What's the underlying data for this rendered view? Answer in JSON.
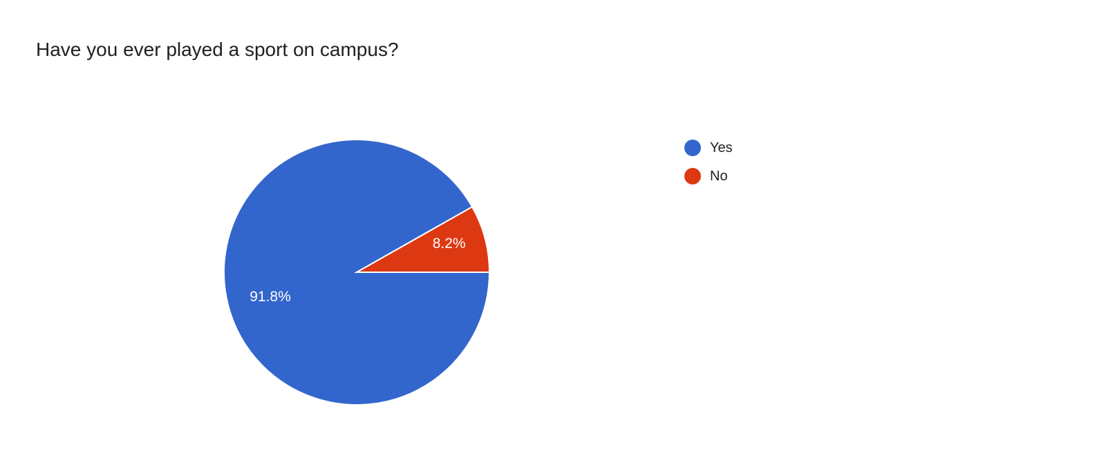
{
  "chart_data": {
    "type": "pie",
    "title": "Have you ever played a sport on campus?",
    "slices": [
      {
        "label": "Yes",
        "value": 91.8,
        "data_label": "91.8%",
        "color": "#3366CC"
      },
      {
        "label": "No",
        "value": 8.2,
        "data_label": "8.2%",
        "color": "#DC3912"
      }
    ],
    "legend": "right"
  }
}
